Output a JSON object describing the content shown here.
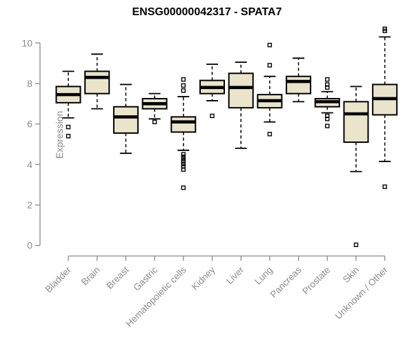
{
  "title": "ENSG00000042317 - SPATA7",
  "chart_data": {
    "type": "boxplot",
    "title": "ENSG00000042317 - SPATA7",
    "xlabel": "",
    "ylabel": "Expression",
    "ylim": [
      0,
      11
    ],
    "yticks": [
      0,
      2,
      4,
      6,
      8,
      10
    ],
    "grid": false,
    "legend": "none",
    "axis_color": "#8B8B8B",
    "label_color": "#8B8B8B",
    "box_fill": "#EAE5CA",
    "box_stroke": "#000000",
    "categories": [
      "Bladder",
      "Brain",
      "Breast",
      "Gastric",
      "Hematopoietic cells",
      "Kidney",
      "Liver",
      "Lung",
      "Pancreas",
      "Prostate",
      "Skin",
      "Unknown / Other"
    ],
    "boxes": [
      {
        "category": "Bladder",
        "whisker_low": 6.3,
        "q1": 7.05,
        "median": 7.45,
        "q3": 7.85,
        "whisker_high": 8.6,
        "outliers": [
          5.85,
          5.4
        ]
      },
      {
        "category": "Brain",
        "whisker_low": 6.75,
        "q1": 7.5,
        "median": 8.3,
        "q3": 8.6,
        "whisker_high": 9.45,
        "outliers": []
      },
      {
        "category": "Breast",
        "whisker_low": 4.55,
        "q1": 5.55,
        "median": 6.35,
        "q3": 6.85,
        "whisker_high": 7.95,
        "outliers": []
      },
      {
        "category": "Gastric",
        "whisker_low": 6.25,
        "q1": 6.75,
        "median": 7.0,
        "q3": 7.25,
        "whisker_high": 7.5,
        "outliers": [
          6.1
        ]
      },
      {
        "category": "Hematopoietic cells",
        "whisker_low": 4.7,
        "q1": 5.6,
        "median": 6.1,
        "q3": 6.35,
        "whisker_high": 7.35,
        "outliers": [
          8.2,
          7.9,
          7.65,
          4.5,
          4.38,
          4.27,
          4.15,
          4.02,
          3.9,
          3.75,
          2.85
        ]
      },
      {
        "category": "Kidney",
        "whisker_low": 7.15,
        "q1": 7.5,
        "median": 7.8,
        "q3": 8.15,
        "whisker_high": 8.95,
        "outliers": [
          6.4
        ]
      },
      {
        "category": "Liver",
        "whisker_low": 4.8,
        "q1": 6.8,
        "median": 7.8,
        "q3": 8.5,
        "whisker_high": 9.05,
        "outliers": []
      },
      {
        "category": "Lung",
        "whisker_low": 6.1,
        "q1": 6.8,
        "median": 7.15,
        "q3": 7.45,
        "whisker_high": 8.35,
        "outliers": [
          9.9,
          8.9,
          5.5
        ]
      },
      {
        "category": "Pancreas",
        "whisker_low": 7.1,
        "q1": 7.5,
        "median": 8.1,
        "q3": 8.35,
        "whisker_high": 9.25,
        "outliers": []
      },
      {
        "category": "Prostate",
        "whisker_low": 6.55,
        "q1": 6.85,
        "median": 7.1,
        "q3": 7.25,
        "whisker_high": 7.6,
        "outliers": [
          8.2,
          7.95,
          7.8,
          6.4,
          6.25,
          5.9
        ]
      },
      {
        "category": "Skin",
        "whisker_low": 3.65,
        "q1": 5.1,
        "median": 6.5,
        "q3": 7.1,
        "whisker_high": 7.85,
        "outliers": [
          0.03
        ]
      },
      {
        "category": "Unknown / Other",
        "whisker_low": 4.15,
        "q1": 6.45,
        "median": 7.25,
        "q3": 7.95,
        "whisker_high": 10.3,
        "outliers": [
          10.7,
          10.6,
          2.9
        ]
      }
    ]
  }
}
